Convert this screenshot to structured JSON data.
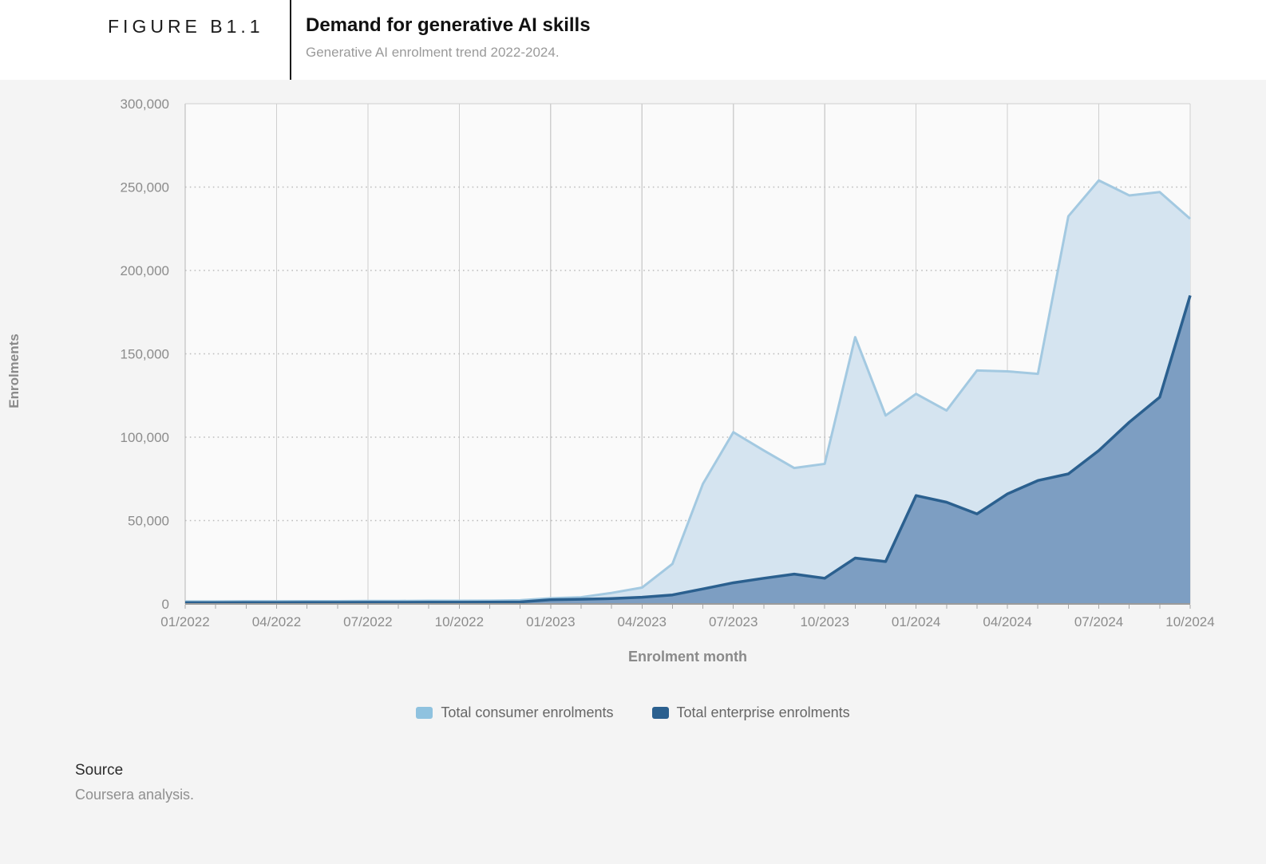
{
  "header": {
    "figure_label": "FIGURE B1.1",
    "title": "Demand for generative AI skills",
    "subtitle": "Generative AI enrolment trend 2022-2024."
  },
  "source": {
    "label": "Source",
    "text": "Coursera analysis."
  },
  "legend": [
    {
      "label": "Total consumer enrolments",
      "color": "#8fc2df"
    },
    {
      "label": "Total enterprise enrolments",
      "color": "#2b608f"
    }
  ],
  "colors": {
    "page_background": "#f4f4f4",
    "plot_background": "#fafafa",
    "vertical_grid": "#cfcfcf",
    "left_border": "#b5b5b5",
    "dotted_grid": "#bcbcbc",
    "axis_line": "#9b9b9b",
    "tick_label": "#8c8c8c",
    "consumer_stroke": "#a3c9e1",
    "consumer_fill": "#d5e4f0",
    "enterprise_stroke": "#2b608f",
    "enterprise_fill": "#7d9ec2"
  },
  "chart_data": {
    "type": "area",
    "title": "Demand for generative AI skills",
    "xlabel": "Enrolment month",
    "ylabel": "Enrolments",
    "ylim": [
      0,
      300000
    ],
    "grid": "vertical solid lines every 3 months, horizontal dotted lines every 50000",
    "legend_position": "bottom",
    "x": [
      "01/2022",
      "02/2022",
      "03/2022",
      "04/2022",
      "05/2022",
      "06/2022",
      "07/2022",
      "08/2022",
      "09/2022",
      "10/2022",
      "11/2022",
      "12/2022",
      "01/2023",
      "02/2023",
      "03/2023",
      "04/2023",
      "05/2023",
      "06/2023",
      "07/2023",
      "08/2023",
      "09/2023",
      "10/2023",
      "11/2023",
      "12/2023",
      "01/2024",
      "02/2024",
      "03/2024",
      "04/2024",
      "05/2024",
      "06/2024",
      "07/2024",
      "08/2024",
      "09/2024",
      "10/2024"
    ],
    "x_tick_labels": [
      "01/2022",
      "04/2022",
      "07/2022",
      "10/2022",
      "01/2023",
      "04/2023",
      "07/2023",
      "10/2023",
      "01/2024",
      "04/2024",
      "07/2024",
      "10/2024"
    ],
    "x_tick_every": 3,
    "y_tick_values": [
      0,
      50000,
      100000,
      150000,
      200000,
      250000,
      300000
    ],
    "y_tick_labels": [
      "0",
      "50,000",
      "100,000",
      "150,000",
      "200,000",
      "250,000",
      "300,000"
    ],
    "series": [
      {
        "name": "Total consumer enrolments",
        "values": [
          1500,
          1500,
          1600,
          1600,
          1700,
          1700,
          1800,
          1800,
          1900,
          1900,
          2000,
          2200,
          3400,
          4000,
          6600,
          9800,
          24000,
          72000,
          103000,
          92000,
          81500,
          84000,
          160000,
          113000,
          126000,
          116000,
          140000,
          139500,
          138000,
          232500,
          254000,
          245000,
          247000,
          231000
        ]
      },
      {
        "name": "Total enterprise enrolments",
        "values": [
          800,
          800,
          850,
          850,
          900,
          900,
          950,
          950,
          1000,
          1000,
          1100,
          1200,
          2500,
          2800,
          3200,
          4000,
          5400,
          9000,
          12700,
          15400,
          17900,
          15400,
          27500,
          25400,
          65000,
          61000,
          54000,
          66000,
          74000,
          78000,
          92000,
          109000,
          124000,
          185000
        ]
      }
    ]
  }
}
